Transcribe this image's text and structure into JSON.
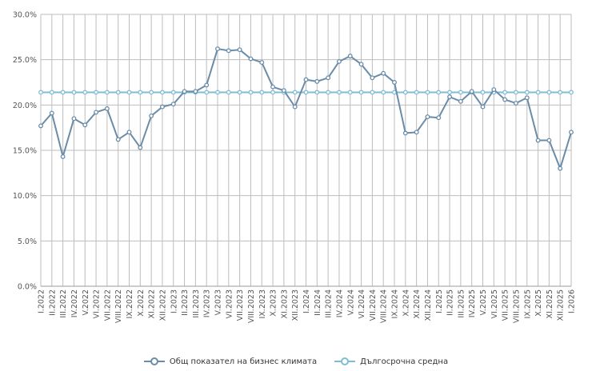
{
  "chart_data": {
    "type": "line",
    "title": "",
    "xlabel": "",
    "ylabel": "",
    "ylim": [
      0,
      30
    ],
    "yticks": [
      0,
      5,
      10,
      15,
      20,
      25,
      30
    ],
    "ytick_labels": [
      "0.0%",
      "5.0%",
      "10.0%",
      "15.0%",
      "20.0%",
      "25.0%",
      "30.0%"
    ],
    "grid": true,
    "legend_position": "bottom",
    "categories": [
      "I.2022",
      "II.2022",
      "III.2022",
      "IV.2022",
      "V.2022",
      "VI.2022",
      "VII.2022",
      "VIII.2022",
      "IX.2022",
      "X.2022",
      "XI.2022",
      "XII.2022",
      "I.2023",
      "II.2023",
      "III.2023",
      "IV.2023",
      "V.2023",
      "VI.2023",
      "VII.2023",
      "VIII.2023",
      "IX.2023",
      "X.2023",
      "XI.2023",
      "XII.2023",
      "I.2024",
      "II.2024",
      "III.2024",
      "IV.2024",
      "V.2024",
      "VI.2024",
      "VII.2024",
      "VIII.2024",
      "IX.2024",
      "X.2024",
      "XI.2024",
      "XII.2024",
      "I.2025",
      "II.2025",
      "III.2025",
      "IV.2025",
      "V.2025",
      "VI.2025",
      "VII.2025",
      "VIII.2025",
      "IX.2025",
      "X.2025",
      "XI.2025",
      "XII.2025",
      "I.2026"
    ],
    "series": [
      {
        "name": "Общ показател на бизнес климата",
        "color": "#6a8ca8",
        "values": [
          17.7,
          19.1,
          14.3,
          18.5,
          17.8,
          19.2,
          19.6,
          16.2,
          17.0,
          15.3,
          18.8,
          19.8,
          20.1,
          21.5,
          21.5,
          22.2,
          26.2,
          26.0,
          26.1,
          25.1,
          24.7,
          22.0,
          21.6,
          19.8,
          22.8,
          22.6,
          23.0,
          24.8,
          25.4,
          24.5,
          23.0,
          23.5,
          22.5,
          16.9,
          17.0,
          18.7,
          18.6,
          20.9,
          20.4,
          21.5,
          19.8,
          21.7,
          20.6,
          20.2,
          20.8,
          16.1,
          16.1,
          13.0,
          17.0
        ]
      },
      {
        "name": "Дългосрочна средна",
        "color": "#7fbcd6",
        "values": [
          21.4,
          21.4,
          21.4,
          21.4,
          21.4,
          21.4,
          21.4,
          21.4,
          21.4,
          21.4,
          21.4,
          21.4,
          21.4,
          21.4,
          21.4,
          21.4,
          21.4,
          21.4,
          21.4,
          21.4,
          21.4,
          21.4,
          21.4,
          21.4,
          21.4,
          21.4,
          21.4,
          21.4,
          21.4,
          21.4,
          21.4,
          21.4,
          21.4,
          21.4,
          21.4,
          21.4,
          21.4,
          21.4,
          21.4,
          21.4,
          21.4,
          21.4,
          21.4,
          21.4,
          21.4,
          21.4,
          21.4,
          21.4,
          21.4
        ]
      }
    ]
  }
}
